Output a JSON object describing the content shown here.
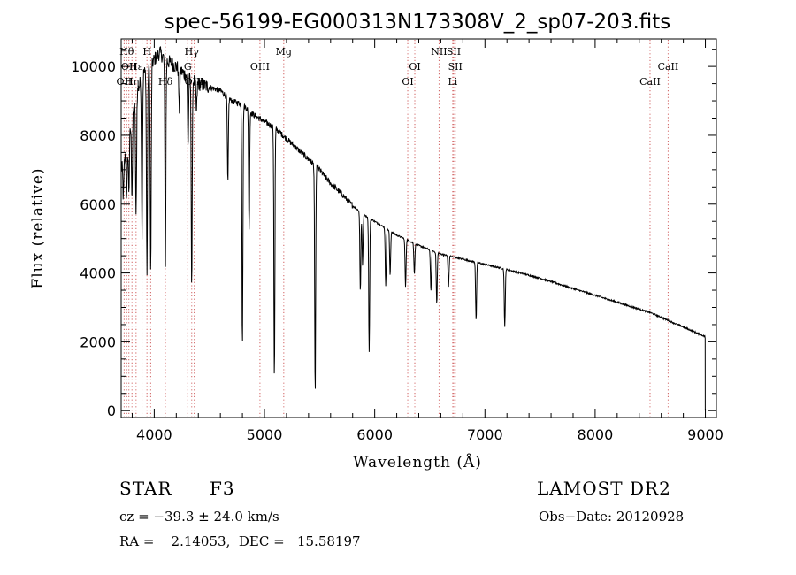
{
  "chart_data": {
    "type": "line",
    "title": "spec-56199-EG000313N173308V_2_sp07-203.fits",
    "xlabel": "Wavelength (Å)",
    "ylabel": "Flux (relative)",
    "xlim": [
      3700,
      9100
    ],
    "ylim": [
      -200,
      10800
    ],
    "xticks": [
      4000,
      5000,
      6000,
      7000,
      8000,
      9000
    ],
    "yticks": [
      0,
      2000,
      4000,
      6000,
      8000,
      10000
    ],
    "grid": false,
    "continuum": {
      "x": [
        3700,
        3750,
        3800,
        3850,
        3900,
        3950,
        4000,
        4050,
        4100,
        4150,
        4200,
        4300,
        4400,
        4500,
        4600,
        4700,
        4800,
        4900,
        5000,
        5100,
        5200,
        5300,
        5400,
        5500,
        5600,
        5700,
        5800,
        5900,
        6000,
        6200,
        6400,
        6600,
        6800,
        7000,
        7200,
        7500,
        8000,
        8500,
        9000
      ],
      "y": [
        7000,
        7500,
        8500,
        9300,
        9800,
        9900,
        10200,
        10400,
        10200,
        10100,
        10000,
        9700,
        9500,
        9400,
        9300,
        9000,
        8900,
        8600,
        8400,
        8200,
        7900,
        7600,
        7300,
        7000,
        6600,
        6300,
        5950,
        5700,
        5500,
        5100,
        4800,
        4550,
        4400,
        4250,
        4100,
        3850,
        3350,
        2850,
        2150
      ]
    },
    "absorption_lines": [
      {
        "x": 3720,
        "depth": 1000
      },
      {
        "x": 3750,
        "depth": 1300
      },
      {
        "x": 3770,
        "depth": 1500
      },
      {
        "x": 3798,
        "depth": 2200
      },
      {
        "x": 3835,
        "depth": 3500
      },
      {
        "x": 3889,
        "depth": 4500
      },
      {
        "x": 3934,
        "depth": 6000
      },
      {
        "x": 3968,
        "depth": 6000
      },
      {
        "x": 4101,
        "depth": 6200
      },
      {
        "x": 4227,
        "depth": 1200
      },
      {
        "x": 4307,
        "depth": 2000
      },
      {
        "x": 4340,
        "depth": 6000
      },
      {
        "x": 4383,
        "depth": 900
      },
      {
        "x": 4668,
        "depth": 2500
      },
      {
        "x": 4800,
        "depth": 7000
      },
      {
        "x": 4861,
        "depth": 3500
      },
      {
        "x": 5090,
        "depth": 7300
      },
      {
        "x": 5460,
        "depth": 6700
      },
      {
        "x": 5870,
        "depth": 2300
      },
      {
        "x": 5890,
        "depth": 1500
      },
      {
        "x": 5950,
        "depth": 3900
      },
      {
        "x": 6100,
        "depth": 1700
      },
      {
        "x": 6140,
        "depth": 1300
      },
      {
        "x": 6280,
        "depth": 1400
      },
      {
        "x": 6360,
        "depth": 900
      },
      {
        "x": 6510,
        "depth": 1200
      },
      {
        "x": 6563,
        "depth": 1500
      },
      {
        "x": 6670,
        "depth": 900
      },
      {
        "x": 6920,
        "depth": 1700
      },
      {
        "x": 7180,
        "depth": 1700
      }
    ],
    "marker_lines": [
      {
        "x": 3727,
        "label": "OII",
        "row": 2
      },
      {
        "x": 3750,
        "label": "Hθ",
        "row": 0
      },
      {
        "x": 3770,
        "label": "OII",
        "row": 1
      },
      {
        "x": 3798,
        "label": "Hη",
        "row": 2
      },
      {
        "x": 3835,
        "label": "Hε",
        "row": 1
      },
      {
        "x": 3889,
        "label": "",
        "row": 2
      },
      {
        "x": 3934,
        "label": "H",
        "row": 0
      },
      {
        "x": 3968,
        "label": "",
        "row": 1
      },
      {
        "x": 4101,
        "label": "Hδ",
        "row": 2
      },
      {
        "x": 4304,
        "label": "G",
        "row": 1
      },
      {
        "x": 4340,
        "label": "Hγ",
        "row": 0
      },
      {
        "x": 4363,
        "label": "OIII",
        "row": 2
      },
      {
        "x": 4959,
        "label": "OIII",
        "row": 1
      },
      {
        "x": 5175,
        "label": "Mg",
        "row": 0
      },
      {
        "x": 6300,
        "label": "OI",
        "row": 2
      },
      {
        "x": 6364,
        "label": "OI",
        "row": 1
      },
      {
        "x": 6584,
        "label": "NII",
        "row": 0
      },
      {
        "x": 6708,
        "label": "Li",
        "row": 2
      },
      {
        "x": 6717,
        "label": "SII",
        "row": 0
      },
      {
        "x": 6731,
        "label": "SII",
        "row": 1
      },
      {
        "x": 8498,
        "label": "CaII",
        "row": 2
      },
      {
        "x": 8662,
        "label": "CaII",
        "row": 1
      }
    ]
  },
  "info": {
    "object_class": "STAR",
    "subclass": "F3",
    "cz": "cz = −39.3 ± 24.0 km/s",
    "coords": "RA =    2.14053,  DEC =   15.58197",
    "survey": "LAMOST DR2",
    "obs_date": "Obs−Date: 20120928"
  }
}
